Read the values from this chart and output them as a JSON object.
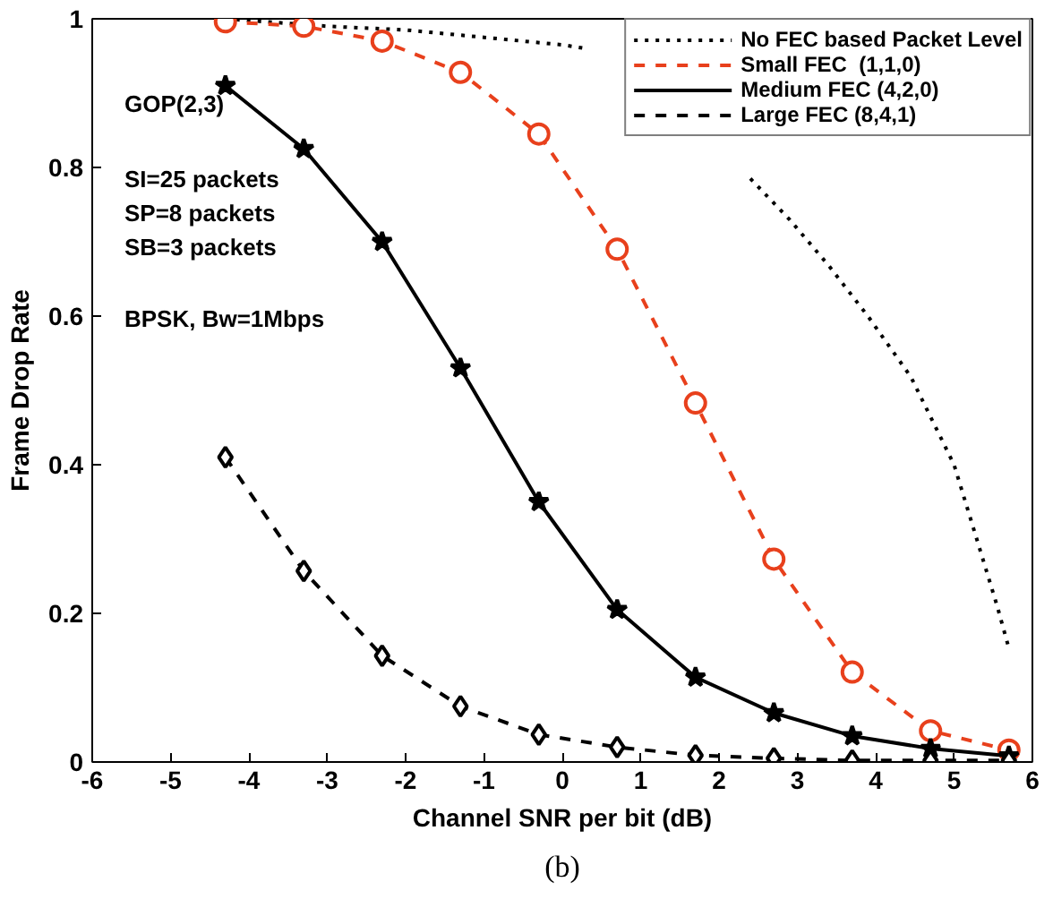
{
  "chart_data": {
    "type": "line",
    "xlabel": "Channel SNR per bit (dB)",
    "ylabel": "Frame Drop Rate",
    "x": [
      -4.3,
      -3.3,
      -2.3,
      -1.3,
      -0.3,
      0.7,
      1.7,
      2.7,
      3.7,
      4.7,
      5.7
    ],
    "series": [
      {
        "name": "No FEC based Packet Level",
        "color": "#000000",
        "line_style": "dotted",
        "marker": "none",
        "x": [
          -4.3,
          -3,
          -2,
          -1,
          0,
          0.3,
          1.3,
          2.4,
          2.9,
          3.4,
          3.9,
          4.45,
          5,
          5.55,
          5.7
        ],
        "values": [
          1.0,
          0.99,
          0.985,
          0.975,
          0.965,
          0.96,
          null,
          0.785,
          0.73,
          0.668,
          0.6,
          0.518,
          0.4,
          0.21,
          0.153
        ]
      },
      {
        "name": "Small FEC  (1,1,0)",
        "color": "#e8401c",
        "line_style": "dashed",
        "marker": "circle",
        "values": [
          0.996,
          0.99,
          0.97,
          0.928,
          0.845,
          0.69,
          0.483,
          0.273,
          0.121,
          0.042,
          0.016
        ]
      },
      {
        "name": "Medium FEC (4,2,0)",
        "color": "#000000",
        "line_style": "solid",
        "marker": "star",
        "values": [
          0.91,
          0.825,
          0.7,
          0.53,
          0.35,
          0.205,
          0.114,
          0.066,
          0.035,
          0.018,
          0.008
        ]
      },
      {
        "name": "Large FEC (8,4,1)",
        "color": "#000000",
        "line_style": "dashed",
        "marker": "diamond",
        "values": [
          0.41,
          0.257,
          0.143,
          0.075,
          0.037,
          0.02,
          0.009,
          0.005,
          0.002,
          0.002,
          0.002
        ]
      }
    ],
    "xlim": [
      -6,
      6
    ],
    "xticks": [
      -6,
      -5,
      -4,
      -3,
      -2,
      -1,
      0,
      1,
      2,
      3,
      4,
      5,
      6
    ],
    "ylim": [
      0,
      1
    ],
    "yticks": [
      0,
      0.2,
      0.4,
      0.6,
      0.8,
      1
    ],
    "legend": "top right",
    "grid": false,
    "annotations": [
      "GOP(2,3)",
      "SI=25 packets",
      "SP=8 packets",
      "SB=3 packets",
      "BPSK, Bw=1Mbps",
      "(b)"
    ]
  }
}
